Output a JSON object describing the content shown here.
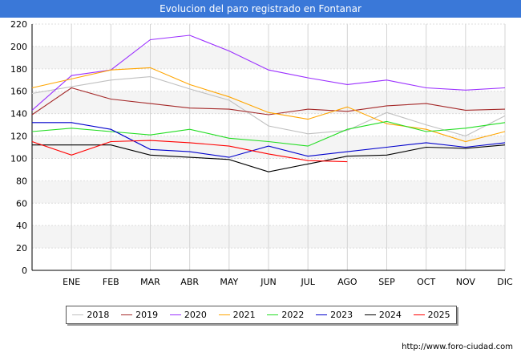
{
  "chart_data": {
    "type": "line",
    "title": "Evolucion del paro registrado en Fontanar",
    "xlabel": "",
    "ylabel": "",
    "ylim": [
      0,
      220
    ],
    "yticks": [
      0,
      20,
      40,
      60,
      80,
      100,
      120,
      140,
      160,
      180,
      200,
      220
    ],
    "categories": [
      "",
      "ENE",
      "FEB",
      "MAR",
      "ABR",
      "MAY",
      "JUN",
      "JUL",
      "AGO",
      "SEP",
      "OCT",
      "NOV",
      "DIC"
    ],
    "grid": true,
    "legend_position": "bottom",
    "series": [
      {
        "name": "2018",
        "color": "#c0c0c0",
        "values": [
          158,
          164,
          170,
          173,
          162,
          152,
          129,
          122,
          125,
          141,
          130,
          120,
          138
        ]
      },
      {
        "name": "2019",
        "color": "#a52a2a",
        "values": [
          139,
          163,
          153,
          149,
          145,
          144,
          139,
          144,
          142,
          147,
          149,
          143,
          144
        ]
      },
      {
        "name": "2020",
        "color": "#9b30ff",
        "values": [
          143,
          174,
          179,
          206,
          210,
          196,
          179,
          172,
          166,
          170,
          163,
          161,
          163
        ]
      },
      {
        "name": "2021",
        "color": "#ffa500",
        "values": [
          163,
          171,
          179,
          181,
          166,
          155,
          141,
          135,
          146,
          131,
          126,
          115,
          124
        ]
      },
      {
        "name": "2022",
        "color": "#22dd22",
        "values": [
          124,
          127,
          124,
          121,
          126,
          118,
          115,
          111,
          126,
          133,
          124,
          127,
          132
        ]
      },
      {
        "name": "2023",
        "color": "#0000cc",
        "values": [
          132,
          132,
          126,
          108,
          106,
          101,
          111,
          102,
          106,
          110,
          114,
          110,
          114
        ]
      },
      {
        "name": "2024",
        "color": "#000000",
        "values": [
          112,
          112,
          112,
          103,
          101,
          99,
          88,
          95,
          102,
          103,
          110,
          109,
          112
        ]
      },
      {
        "name": "2025",
        "color": "#ff0000",
        "values": [
          115,
          103,
          115,
          116,
          114,
          111,
          104,
          98,
          97,
          null,
          null,
          null,
          null
        ]
      }
    ]
  },
  "footer": {
    "source": "http://www.foro-ciudad.com"
  }
}
